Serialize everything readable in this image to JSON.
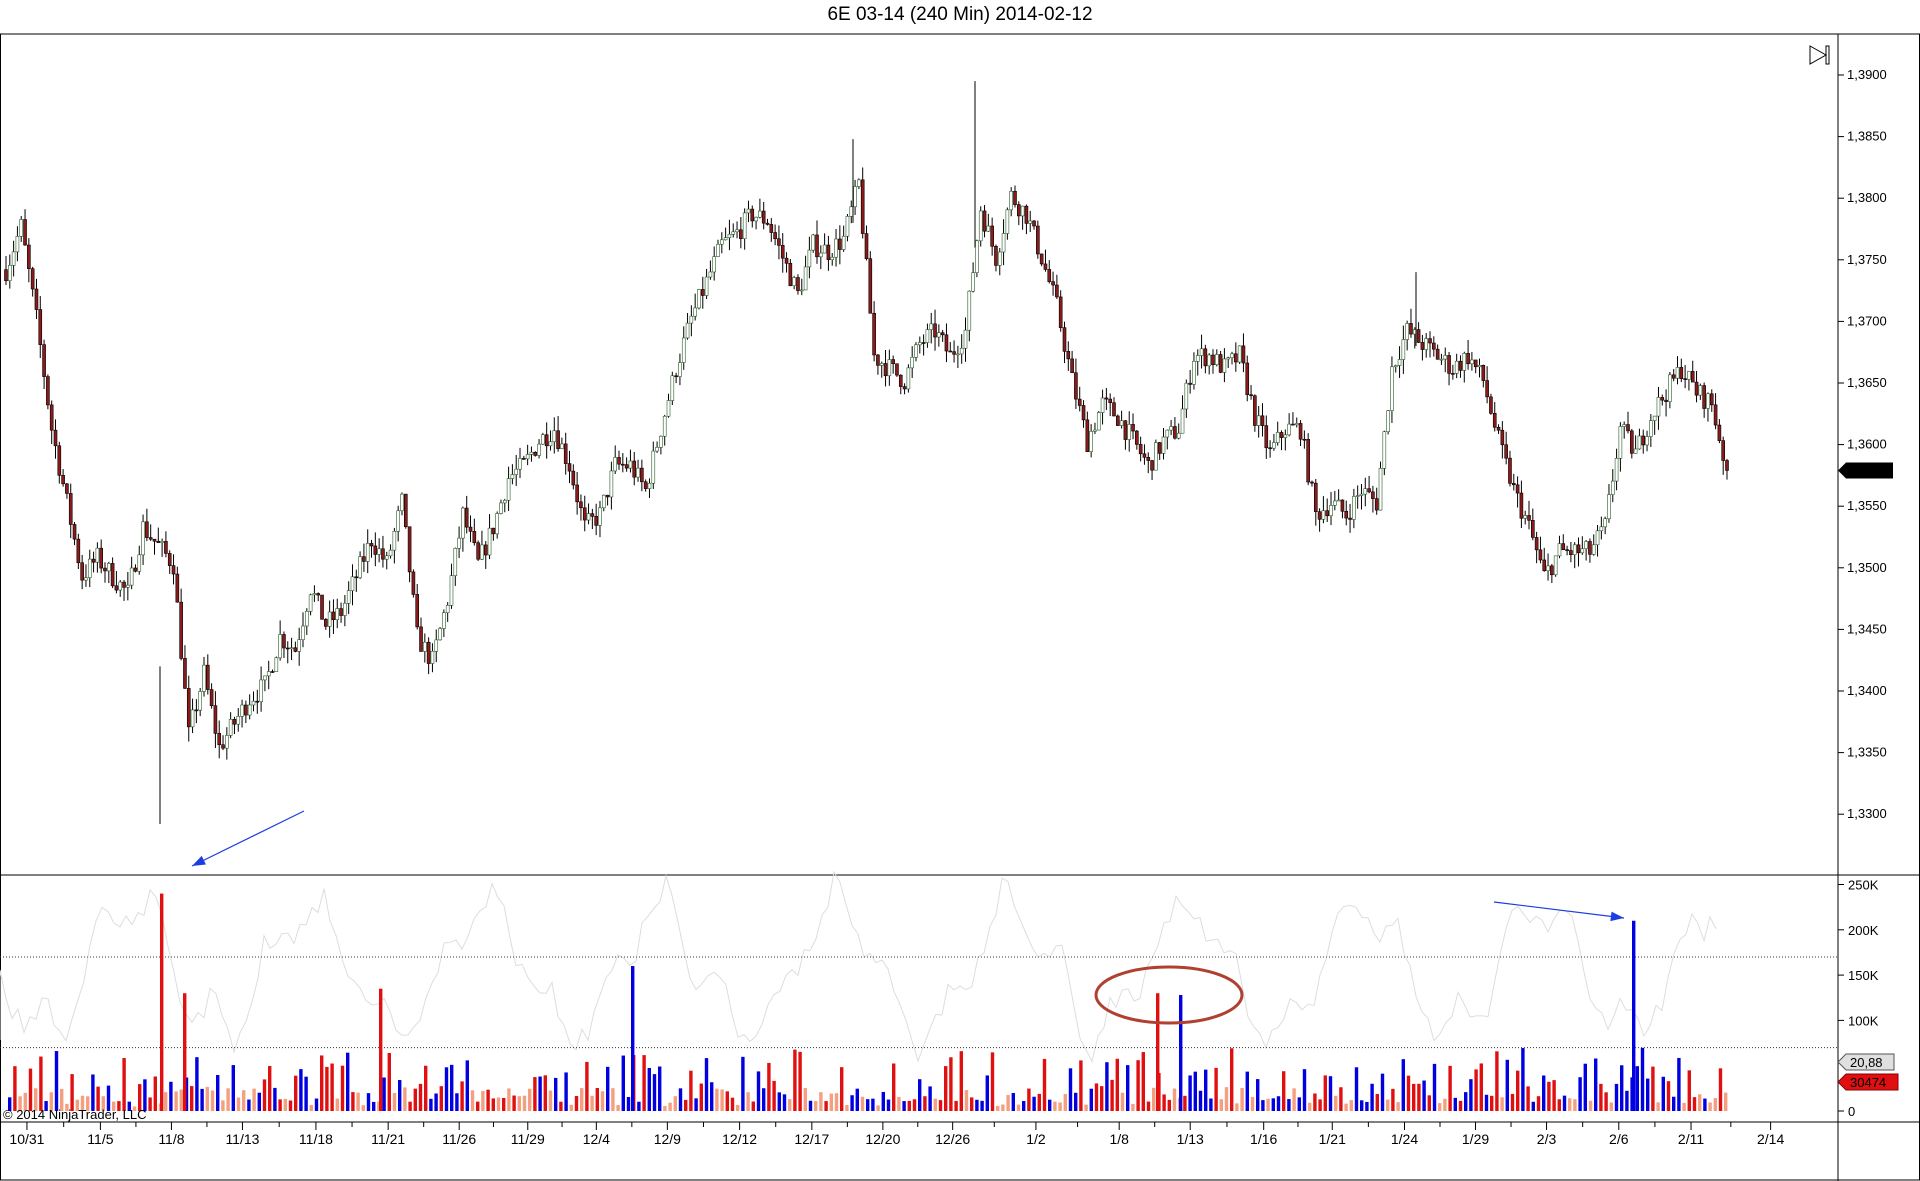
{
  "title": "6E 03-14 (240 Min)  2014-02-12",
  "copyright": "© 2014 NinjaTrader, LLC",
  "chart_data": [
    {
      "type": "candlestick",
      "title": "6E 03-14 (240 Min)  2014-02-12",
      "ylim": [
        1.328,
        1.392
      ],
      "y_ticks": [
        "1,3300",
        "1,3350",
        "1,3400",
        "1,3450",
        "1,3500",
        "1,3550",
        "1,3600",
        "1,3650",
        "1,3700",
        "1,3750",
        "1,3800",
        "1,3850",
        "1,3900"
      ],
      "x_ticks": [
        "10/31",
        "11/5",
        "11/8",
        "11/13",
        "11/18",
        "11/21",
        "11/26",
        "11/29",
        "12/4",
        "12/9",
        "12/12",
        "12/17",
        "12/20",
        "12/26",
        "1/2",
        "1/8",
        "1/13",
        "1/16",
        "1/21",
        "1/24",
        "1/29",
        "2/3",
        "2/6",
        "2/11",
        "2/14"
      ],
      "closes": [
        1.3742,
        1.3777,
        1.3702,
        1.3613,
        1.3553,
        1.3493,
        1.3508,
        1.3493,
        1.3479,
        1.3533,
        1.3518,
        1.3503,
        1.3364,
        1.3414,
        1.3354,
        1.3374,
        1.3394,
        1.3404,
        1.3444,
        1.3434,
        1.3484,
        1.3454,
        1.3464,
        1.3493,
        1.3523,
        1.3503,
        1.3553,
        1.3444,
        1.3424,
        1.3474,
        1.3543,
        1.3503,
        1.3533,
        1.3573,
        1.3583,
        1.3603,
        1.3613,
        1.3583,
        1.3533,
        1.3543,
        1.3583,
        1.3583,
        1.3563,
        1.3613,
        1.3662,
        1.3702,
        1.3732,
        1.3762,
        1.3772,
        1.3787,
        1.3782,
        1.3752,
        1.3722,
        1.3762,
        1.3757,
        1.3767,
        1.3812,
        1.3672,
        1.3662,
        1.3652,
        1.3682,
        1.3692,
        1.3672,
        1.3692,
        1.3792,
        1.3752,
        1.3802,
        1.3787,
        1.3752,
        1.3712,
        1.3652,
        1.3603,
        1.3633,
        1.3623,
        1.3603,
        1.3583,
        1.3603,
        1.3613,
        1.3672,
        1.3672,
        1.3662,
        1.3672,
        1.3623,
        1.3593,
        1.3613,
        1.3613,
        1.3543,
        1.3553,
        1.3543,
        1.3563,
        1.3553,
        1.3662,
        1.3692,
        1.3682,
        1.3672,
        1.3662,
        1.3672,
        1.3652,
        1.3603,
        1.3563,
        1.3533,
        1.3493,
        1.3513,
        1.3513,
        1.3513,
        1.3533,
        1.3613,
        1.3593,
        1.3623,
        1.3643,
        1.3662,
        1.3643,
        1.3633,
        1.3579
      ],
      "highs_notable": {
        "1,3895": "12/27",
        "1,3848": "12/19",
        "1,3740": "1/24"
      },
      "lows_notable": {
        "1,3292": "11/7"
      },
      "last_price": "1,3579",
      "colors": {
        "up": "#ffffff",
        "down": "#8b1a1a",
        "wick": "#000000"
      }
    },
    {
      "type": "bar",
      "name": "volume",
      "ylim": [
        0,
        250000
      ],
      "y_ticks": [
        "0",
        "100K",
        "150K",
        "200K",
        "250K"
      ],
      "reference_lines": [
        70000,
        170000
      ],
      "spikes": [
        {
          "date": "11/8",
          "value": 240000,
          "color": "red"
        },
        {
          "date": "11/9",
          "value": 130000,
          "color": "red"
        },
        {
          "date": "11/21",
          "value": 135000,
          "color": "red"
        },
        {
          "date": "12/6",
          "value": 160000,
          "color": "blue"
        },
        {
          "date": "1/10",
          "value": 130000,
          "color": "red"
        },
        {
          "date": "1/12",
          "value": 128000,
          "color": "blue"
        },
        {
          "date": "2/6",
          "value": 210000,
          "color": "blue"
        }
      ],
      "labels": {
        "indicator": "20,88",
        "volume": "30474"
      },
      "colors": {
        "up": "#0000e0",
        "down": "#e01010",
        "light": "#f4a080",
        "oscillator": "#dddddd"
      }
    }
  ],
  "annotations": {
    "arrow_color": "#1a3ee0",
    "ellipse_color": "#b04030"
  }
}
